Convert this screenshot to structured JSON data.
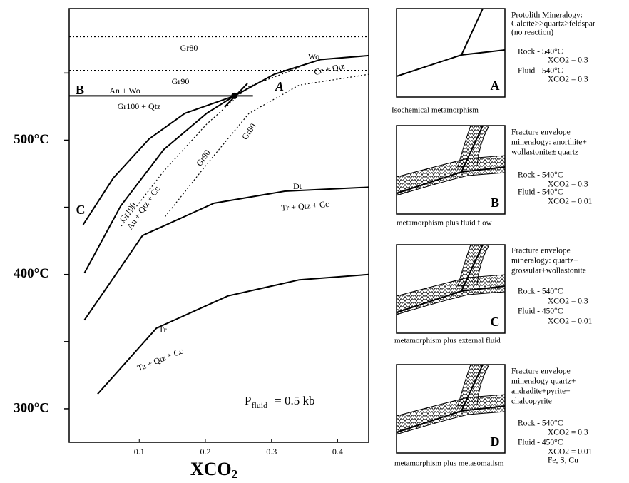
{
  "chart_data": {
    "type": "line",
    "xlabel": "XCO",
    "xlabel_sub": "2",
    "pressure_label": "P",
    "pressure_sub": "fluid",
    "pressure_value": "= 0.5 kb",
    "xlim": [
      -0.006,
      0.447
    ],
    "ylim": [
      275,
      598
    ],
    "xticks": [
      0.1,
      0.2,
      0.3,
      0.4
    ],
    "yticks": [
      {
        "value": 300,
        "label": "300°C"
      },
      {
        "value": 400,
        "label": "400°C"
      },
      {
        "value": 500,
        "label": "500°C"
      }
    ],
    "yminorticks": [
      350,
      450,
      550
    ],
    "series": [
      {
        "color": "#000",
        "dash": "solid",
        "x": [
          0.015,
          0.061,
          0.115,
          0.169,
          0.244
        ],
        "values": [
          437,
          472,
          501,
          520,
          533
        ]
      },
      {
        "color": "#000",
        "dash": "solid",
        "x": [
          0.244,
          0.304,
          0.374,
          0.447
        ],
        "values": [
          533,
          549,
          560,
          563
        ]
      },
      {
        "color": "#000",
        "dash": "solid",
        "x": [
          0.017,
          0.072,
          0.137,
          0.202,
          0.244
        ],
        "values": [
          401,
          451,
          493,
          520,
          533
        ]
      },
      {
        "color": "#000",
        "dash": "dotted",
        "x": [
          0.073,
          0.137,
          0.202,
          0.266,
          0.342
        ],
        "values": [
          436,
          477,
          512,
          540,
          554
        ]
      },
      {
        "color": "#000",
        "dash": "dotted",
        "x": [
          0.139,
          0.202,
          0.266,
          0.342,
          0.447
        ],
        "values": [
          443,
          482,
          520,
          541,
          549
        ]
      },
      {
        "color": "#000",
        "dash": "solid",
        "x": [
          0.017,
          0.105,
          0.213,
          0.32,
          0.447
        ],
        "values": [
          366,
          429,
          453,
          462,
          465
        ]
      },
      {
        "color": "#000",
        "dash": "solid",
        "x": [
          0.037,
          0.126,
          0.234,
          0.342,
          0.447
        ],
        "values": [
          311,
          360,
          384,
          396,
          400
        ]
      },
      {
        "color": "#000",
        "dash": "solid",
        "x": [
          -0.006,
          0.272
        ],
        "values": [
          533,
          533
        ]
      },
      {
        "color": "#000",
        "dash": "dotted",
        "x": [
          -0.006,
          0.447
        ],
        "values": [
          552,
          552
        ]
      },
      {
        "color": "#000",
        "dash": "dotted",
        "x": [
          -0.006,
          0.447
        ],
        "values": [
          577,
          577
        ]
      }
    ],
    "invariant_point": {
      "x": 0.244,
      "y": 533
    },
    "annotations": [
      "Gr80",
      "Gr90",
      "An + Wo",
      "Gr100 + Qtz",
      "Wo",
      "Cc + Qtz",
      "A",
      "B",
      "C",
      "Gr100",
      "An + Qtz + Cc",
      "Gr90",
      "Gr80",
      "Dt",
      "Tr + Qtz + Cc",
      "Tr",
      "Ta + Qtz + Cc"
    ]
  },
  "panels": [
    {
      "letter": "A",
      "caption": "Isochemical metamorphism",
      "description": [
        "Protolith Mineralogy:",
        "Calcite>>quartz>feldspar",
        "(no reaction)"
      ],
      "conditions": [
        {
          "label": "Rock - 540°C",
          "xco2": "XCO2 = 0.3"
        },
        {
          "label": "Fluid - 540°C",
          "xco2": "XCO2 = 0.3"
        }
      ]
    },
    {
      "letter": "B",
      "caption": "metamorphism plus fluid flow",
      "description": [
        "Fracture envelope",
        "mineralogy: anorthite+",
        "wollastonite± quartz"
      ],
      "conditions": [
        {
          "label": "Rock - 540°C",
          "xco2": "XCO2 = 0.3"
        },
        {
          "label": "Fluid - 540°C",
          "xco2": "XCO2 = 0.01"
        }
      ]
    },
    {
      "letter": "C",
      "caption": "metamorphism plus external fluid",
      "description": [
        "Fracture envelope",
        "mineralogy: quartz+",
        "grossular+wollastonite"
      ],
      "conditions": [
        {
          "label": "Rock - 540°C",
          "xco2": "XCO2 = 0.3"
        },
        {
          "label": "Fluid - 450°C",
          "xco2": "XCO2 = 0.01"
        }
      ]
    },
    {
      "letter": "D",
      "caption": "metamorphism plus metasomatism",
      "description": [
        "Fracture envelope",
        "mineralogy quartz+",
        "andradite+pyrite+",
        "chalcopyrite"
      ],
      "conditions": [
        {
          "label": "Rock - 540°C",
          "xco2": "XCO2 = 0.3"
        },
        {
          "label": "Fluid - 450°C",
          "xco2": "XCO2 = 0.01"
        }
      ],
      "extra": "Fe, S, Cu"
    }
  ]
}
